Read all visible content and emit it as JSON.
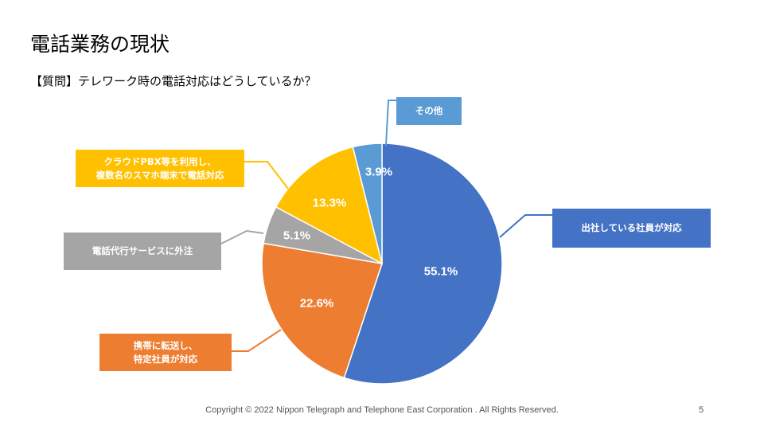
{
  "slide": {
    "title": "電話業務の現状",
    "question": "【質問】テレワーク時の電話対応はどうしているか？",
    "footer": "Copyright © 2022 Nippon Telegraph and Telephone East Corporation . All Rights Reserved.",
    "page_number": "5"
  },
  "chart_data": {
    "type": "pie",
    "title": "【質問】テレワーク時の電話対応はどうしているか？",
    "start": "top, clockwise",
    "slices": [
      {
        "label": "出社している社員が対応",
        "value": 55.1,
        "value_label": "55.1%",
        "color": "#4472C4"
      },
      {
        "label": "携帯に転送し、\n特定社員が対応",
        "value": 22.6,
        "value_label": "22.6%",
        "color": "#ED7D31"
      },
      {
        "label": "電話代行サービスに外注",
        "value": 5.1,
        "value_label": "5.1%",
        "color": "#A5A5A5"
      },
      {
        "label": "クラウドPBX等を利用し、\n複数名のスマホ端末で電話対応",
        "value": 13.3,
        "value_label": "13.3%",
        "color": "#FFC000"
      },
      {
        "label": "その他",
        "value": 3.9,
        "value_label": "3.9%",
        "color": "#5B9BD5"
      }
    ]
  }
}
